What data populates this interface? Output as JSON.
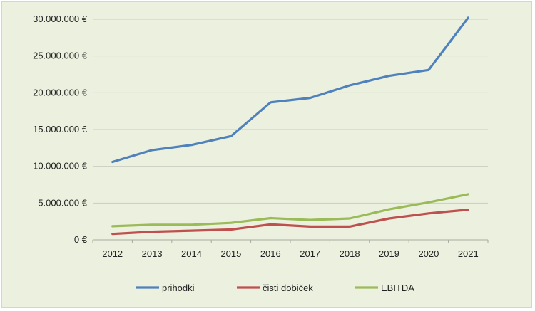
{
  "chart_data": {
    "type": "line",
    "title": "",
    "xlabel": "",
    "ylabel": "",
    "categories": [
      "2012",
      "2013",
      "2014",
      "2015",
      "2016",
      "2017",
      "2018",
      "2019",
      "2020",
      "2021"
    ],
    "ylim": [
      0,
      30000000
    ],
    "yticks": [
      0,
      5000000,
      10000000,
      15000000,
      20000000,
      25000000,
      30000000
    ],
    "ytick_labels": [
      "0 €",
      "5.000.000 €",
      "10.000.000 €",
      "15.000.000 €",
      "20.000.000 €",
      "25.000.000 €",
      "30.000.000 €"
    ],
    "grid": "horizontal",
    "legend_position": "bottom",
    "series": [
      {
        "name": "prihodki",
        "color": "#4f81bd",
        "values": [
          10600000,
          12200000,
          12900000,
          14100000,
          18700000,
          19300000,
          21000000,
          22300000,
          23100000,
          30200000
        ]
      },
      {
        "name": "čisti dobiček",
        "color": "#c0504d",
        "values": [
          800000,
          1100000,
          1250000,
          1400000,
          2100000,
          1800000,
          1800000,
          2900000,
          3600000,
          4100000
        ]
      },
      {
        "name": "EBITDA",
        "color": "#9bbb59",
        "values": [
          1850000,
          2050000,
          2050000,
          2300000,
          2950000,
          2700000,
          2900000,
          4150000,
          5100000,
          6200000
        ]
      }
    ]
  }
}
